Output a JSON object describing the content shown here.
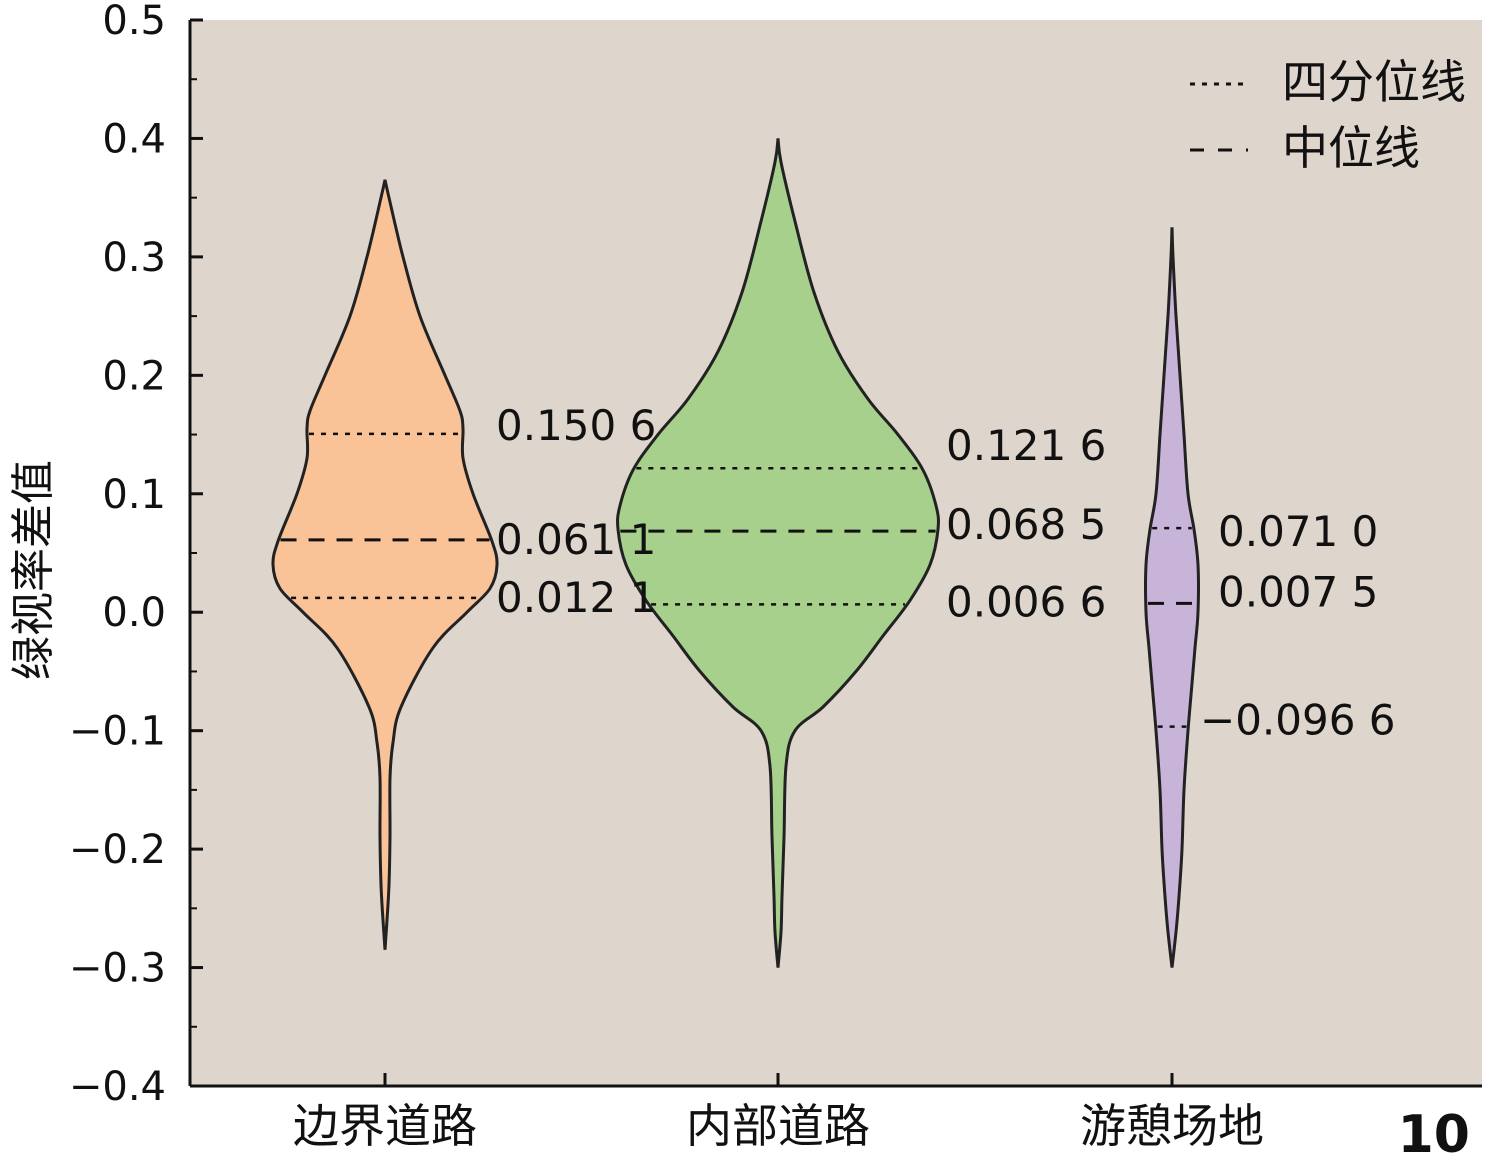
{
  "figure_number": "10",
  "chart_data": {
    "type": "violin",
    "ylabel": "绿视率差值",
    "xlabel": "",
    "ylim": [
      -0.4,
      0.5
    ],
    "yticks": [
      "0.5",
      "0.4",
      "0.3",
      "0.2",
      "0.1",
      "0.0",
      "−0.1",
      "−0.2",
      "−0.3",
      "−0.4"
    ],
    "ytick_values": [
      0.5,
      0.4,
      0.3,
      0.2,
      0.1,
      0.0,
      -0.1,
      -0.2,
      -0.3,
      -0.4
    ],
    "background_color": "#ded5cc",
    "grid": false,
    "legend_position": "top-right",
    "legend": [
      {
        "label": "四分位线",
        "style": "dotted"
      },
      {
        "label": "中位线",
        "style": "dashed"
      }
    ],
    "categories": [
      "边界道路",
      "内部道路",
      "游憩场地"
    ],
    "series": [
      {
        "category": "边界道路",
        "color": "#f9c297",
        "min": -0.285,
        "max": 0.365,
        "q1": 0.0121,
        "median": 0.0611,
        "q3": 0.1506,
        "labels": {
          "q3": "0.150 6",
          "median": "0.061 1",
          "q1": "0.012 1"
        }
      },
      {
        "category": "内部道路",
        "color": "#a7d08c",
        "min": -0.3,
        "max": 0.4,
        "q1": 0.0066,
        "median": 0.0685,
        "q3": 0.1216,
        "labels": {
          "q3": "0.121 6",
          "median": "0.068 5",
          "q1": "0.006 6"
        }
      },
      {
        "category": "游憩场地",
        "color": "#c9b4d9",
        "min": -0.3,
        "max": 0.325,
        "q1": -0.0966,
        "median": 0.0075,
        "q3": 0.071,
        "labels": {
          "q3": "0.071 0",
          "median": "0.007 5",
          "q1": "−0.096 6"
        }
      }
    ]
  }
}
